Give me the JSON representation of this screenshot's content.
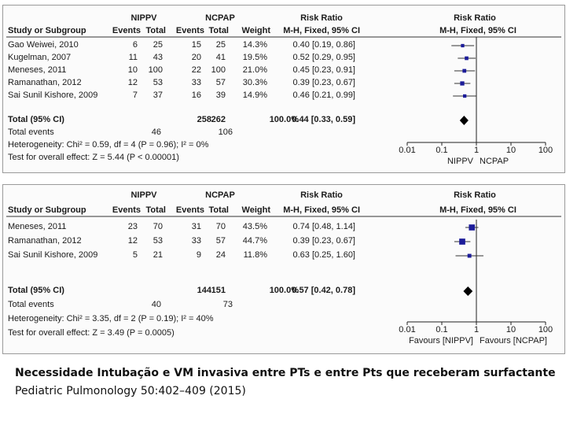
{
  "chart_data": [
    {
      "type": "forest",
      "columns": {
        "group1": "NIPPV",
        "group2": "NCPAP",
        "study": "Study or Subgroup",
        "events": "Events",
        "total": "Total",
        "weight": "Weight",
        "rr_header": "Risk Ratio",
        "rr_method": "M-H, Fixed, 95% CI"
      },
      "studies": [
        {
          "name": "Gao Weiwei, 2010",
          "e1": "6",
          "t1": "25",
          "e2": "15",
          "t2": "25",
          "weight": "14.3%",
          "ci_text": "0.40 [0.19, 0.86]",
          "rr": 0.4,
          "lo": 0.19,
          "hi": 0.86,
          "w": 14.3
        },
        {
          "name": "Kugelman, 2007",
          "e1": "11",
          "t1": "43",
          "e2": "20",
          "t2": "41",
          "weight": "19.5%",
          "ci_text": "0.52 [0.29, 0.95]",
          "rr": 0.52,
          "lo": 0.29,
          "hi": 0.95,
          "w": 19.5
        },
        {
          "name": "Meneses, 2011",
          "e1": "10",
          "t1": "100",
          "e2": "22",
          "t2": "100",
          "weight": "21.0%",
          "ci_text": "0.45 [0.23, 0.91]",
          "rr": 0.45,
          "lo": 0.23,
          "hi": 0.91,
          "w": 21.0
        },
        {
          "name": "Ramanathan, 2012",
          "e1": "12",
          "t1": "53",
          "e2": "33",
          "t2": "57",
          "weight": "30.3%",
          "ci_text": "0.39 [0.23, 0.67]",
          "rr": 0.39,
          "lo": 0.23,
          "hi": 0.67,
          "w": 30.3
        },
        {
          "name": "Sai Sunil Kishore, 2009",
          "e1": "7",
          "t1": "37",
          "e2": "16",
          "t2": "39",
          "weight": "14.9%",
          "ci_text": "0.46 [0.21, 0.99]",
          "rr": 0.46,
          "lo": 0.21,
          "hi": 0.99,
          "w": 14.9
        }
      ],
      "total": {
        "label": "Total (95% CI)",
        "t1": "258",
        "t2": "262",
        "weight": "100.0%",
        "ci_text": "0.44 [0.33, 0.59]",
        "rr": 0.44,
        "lo": 0.33,
        "hi": 0.59
      },
      "total_events": {
        "label": "Total events",
        "e1": "46",
        "e2": "106"
      },
      "heterogeneity": "Heterogeneity: Chi² = 0.59, df = 4 (P = 0.96); I² = 0%",
      "overall_effect": "Test for overall effect: Z = 5.44 (P < 0.00001)",
      "x_ticks": [
        "0.01",
        "0.1",
        "1",
        "10",
        "100"
      ],
      "x_scale": "log",
      "x_range": [
        0.01,
        100
      ],
      "favours_left": "NIPPV",
      "favours_right": "NCPAP"
    },
    {
      "type": "forest",
      "columns": {
        "group1": "NIPPV",
        "group2": "NCPAP",
        "study": "Study or Subgroup",
        "events": "Events",
        "total": "Total",
        "weight": "Weight",
        "rr_header": "Risk Ratio",
        "rr_method": "M-H, Fixed, 95% CI"
      },
      "studies": [
        {
          "name": "Meneses, 2011",
          "e1": "23",
          "t1": "70",
          "e2": "31",
          "t2": "70",
          "weight": "43.5%",
          "ci_text": "0.74 [0.48, 1.14]",
          "rr": 0.74,
          "lo": 0.48,
          "hi": 1.14,
          "w": 43.5
        },
        {
          "name": "Ramanathan, 2012",
          "e1": "12",
          "t1": "53",
          "e2": "33",
          "t2": "57",
          "weight": "44.7%",
          "ci_text": "0.39 [0.23, 0.67]",
          "rr": 0.39,
          "lo": 0.23,
          "hi": 0.67,
          "w": 44.7
        },
        {
          "name": "Sai Sunil Kishore, 2009",
          "e1": "5",
          "t1": "21",
          "e2": "9",
          "t2": "24",
          "weight": "11.8%",
          "ci_text": "0.63 [0.25, 1.60]",
          "rr": 0.63,
          "lo": 0.25,
          "hi": 1.6,
          "w": 11.8
        }
      ],
      "total": {
        "label": "Total (95% CI)",
        "t1": "144",
        "t2": "151",
        "weight": "100.0%",
        "ci_text": "0.57 [0.42, 0.78]",
        "rr": 0.57,
        "lo": 0.42,
        "hi": 0.78
      },
      "total_events": {
        "label": "Total events",
        "e1": "40",
        "e2": "73"
      },
      "heterogeneity": "Heterogeneity: Chi² = 3.35, df = 2 (P = 0.19); I² = 40%",
      "overall_effect": "Test for overall effect: Z = 3.49 (P = 0.0005)",
      "x_ticks": [
        "0.01",
        "0.1",
        "1",
        "10",
        "100"
      ],
      "x_scale": "log",
      "x_range": [
        0.01,
        100
      ],
      "favours_left": "Favours [NIPPV]",
      "favours_right": "Favours [NCPAP]"
    }
  ],
  "caption": {
    "line1": "Necessidade Intubação e VM invasiva entre PTs e entre Pts que receberam surfactante",
    "line2": "Pediatric Pulmonology 50:402–409 (2015)"
  },
  "colors": {
    "marker": "#1c1c99",
    "line": "#222222",
    "text": "#1a1a1a"
  }
}
